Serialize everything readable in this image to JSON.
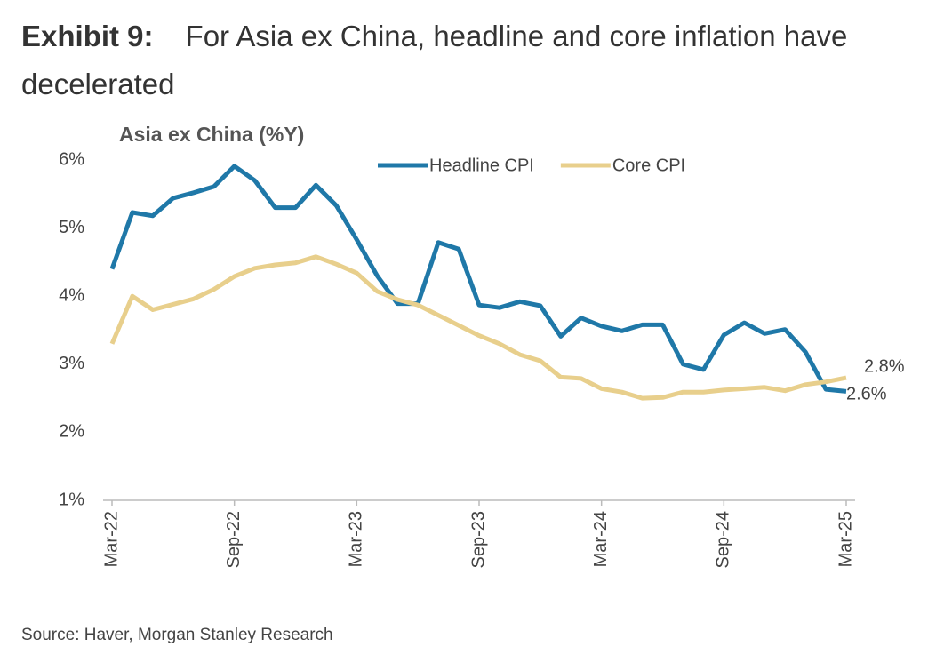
{
  "header": {
    "exhibit": "Exhibit 9:",
    "title": "For Asia ex China, headline and core inflation have decelerated"
  },
  "chart_data": {
    "type": "line",
    "title": "Asia ex China (%Y)",
    "categories": [
      "Mar-22",
      null,
      null,
      null,
      null,
      null,
      "Sep-22",
      null,
      null,
      null,
      null,
      null,
      "Mar-23",
      null,
      null,
      null,
      null,
      null,
      "Sep-23",
      null,
      null,
      null,
      null,
      null,
      "Mar-24",
      null,
      null,
      null,
      null,
      null,
      "Sep-24",
      null,
      null,
      null,
      null,
      null,
      "Mar-25"
    ],
    "series": [
      {
        "name": "Headline CPI",
        "color": "#1f78a8",
        "values": [
          4.4,
          5.23,
          5.18,
          5.44,
          5.52,
          5.61,
          5.91,
          5.7,
          5.3,
          5.3,
          5.63,
          5.33,
          4.83,
          4.3,
          3.89,
          3.89,
          4.79,
          4.69,
          3.87,
          3.83,
          3.92,
          3.86,
          3.41,
          3.68,
          3.56,
          3.49,
          3.58,
          3.58,
          3.0,
          2.92,
          3.43,
          3.61,
          3.45,
          3.51,
          3.18,
          2.63,
          2.6
        ],
        "value_labels": [
          null,
          null,
          null,
          null,
          null,
          null,
          null,
          null,
          null,
          null,
          null,
          null,
          null,
          null,
          null,
          null,
          null,
          null,
          null,
          null,
          null,
          null,
          null,
          null,
          null,
          null,
          null,
          null,
          null,
          null,
          null,
          null,
          null,
          null,
          null,
          null,
          "2.6%"
        ]
      },
      {
        "name": "Core CPI",
        "color": "#e8cf8c",
        "values": [
          3.3,
          4.0,
          3.8,
          3.88,
          3.96,
          4.1,
          4.29,
          4.41,
          4.46,
          4.49,
          4.58,
          4.47,
          4.34,
          4.07,
          3.95,
          3.87,
          3.72,
          3.57,
          3.42,
          3.3,
          3.14,
          3.05,
          2.81,
          2.79,
          2.64,
          2.59,
          2.5,
          2.51,
          2.59,
          2.59,
          2.62,
          2.64,
          2.66,
          2.61,
          2.7,
          2.74,
          2.8
        ],
        "value_labels": [
          null,
          null,
          null,
          null,
          null,
          null,
          null,
          null,
          null,
          null,
          null,
          null,
          null,
          null,
          null,
          null,
          null,
          null,
          null,
          null,
          null,
          null,
          null,
          null,
          null,
          null,
          null,
          null,
          null,
          null,
          null,
          null,
          null,
          null,
          null,
          null,
          "2.8%"
        ]
      }
    ],
    "ylim": [
      1,
      6
    ],
    "yticks": [
      {
        "value": 1,
        "label": "1%"
      },
      {
        "value": 2,
        "label": "2%"
      },
      {
        "value": 3,
        "label": "3%"
      },
      {
        "value": 4,
        "label": "4%"
      },
      {
        "value": 5,
        "label": "5%"
      },
      {
        "value": 6,
        "label": "6%"
      }
    ],
    "grid": false,
    "legend": "top"
  },
  "source": "Source: Haver, Morgan Stanley Research"
}
